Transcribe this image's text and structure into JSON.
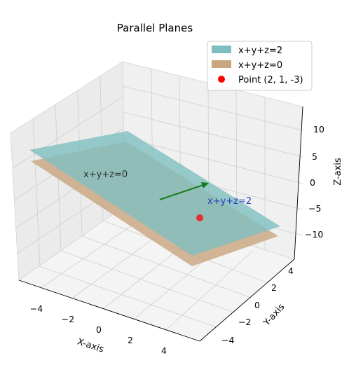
{
  "chart_data": {
    "type": "surface3d",
    "title": "Parallel Planes",
    "xlabel": "X-axis",
    "ylabel": "Y-axis",
    "zlabel": "Z-axis",
    "x_ticks": [
      "−4",
      "−2",
      "0",
      "2",
      "4"
    ],
    "y_ticks": [
      "−4",
      "−2",
      "0",
      "2",
      "4"
    ],
    "z_ticks": [
      "−10",
      "−5",
      "0",
      "5",
      "10"
    ],
    "xlim": [
      -5,
      5
    ],
    "ylim": [
      -5,
      5
    ],
    "zlim": [
      -12,
      14
    ],
    "grid": true,
    "legend_position": "top-right",
    "series": [
      {
        "name": "x+y+z=2",
        "equation": "x+y+z=2",
        "color": "#7fbfc0",
        "alpha": 0.8
      },
      {
        "name": "x+y+z=0",
        "equation": "x+y+z=0",
        "color": "#c8a57e",
        "alpha": 0.8
      },
      {
        "name": "Point (2, 1, -3)",
        "type": "point",
        "x": 2,
        "y": 1,
        "z": -3,
        "color": "#ff0000"
      }
    ],
    "normal_vector": {
      "color": "#1a7a1a"
    },
    "annotations": [
      {
        "text": "x+y+z=0",
        "color": "#333333"
      },
      {
        "text": "x+y+z=2",
        "color": "#1f3fbf"
      }
    ]
  }
}
